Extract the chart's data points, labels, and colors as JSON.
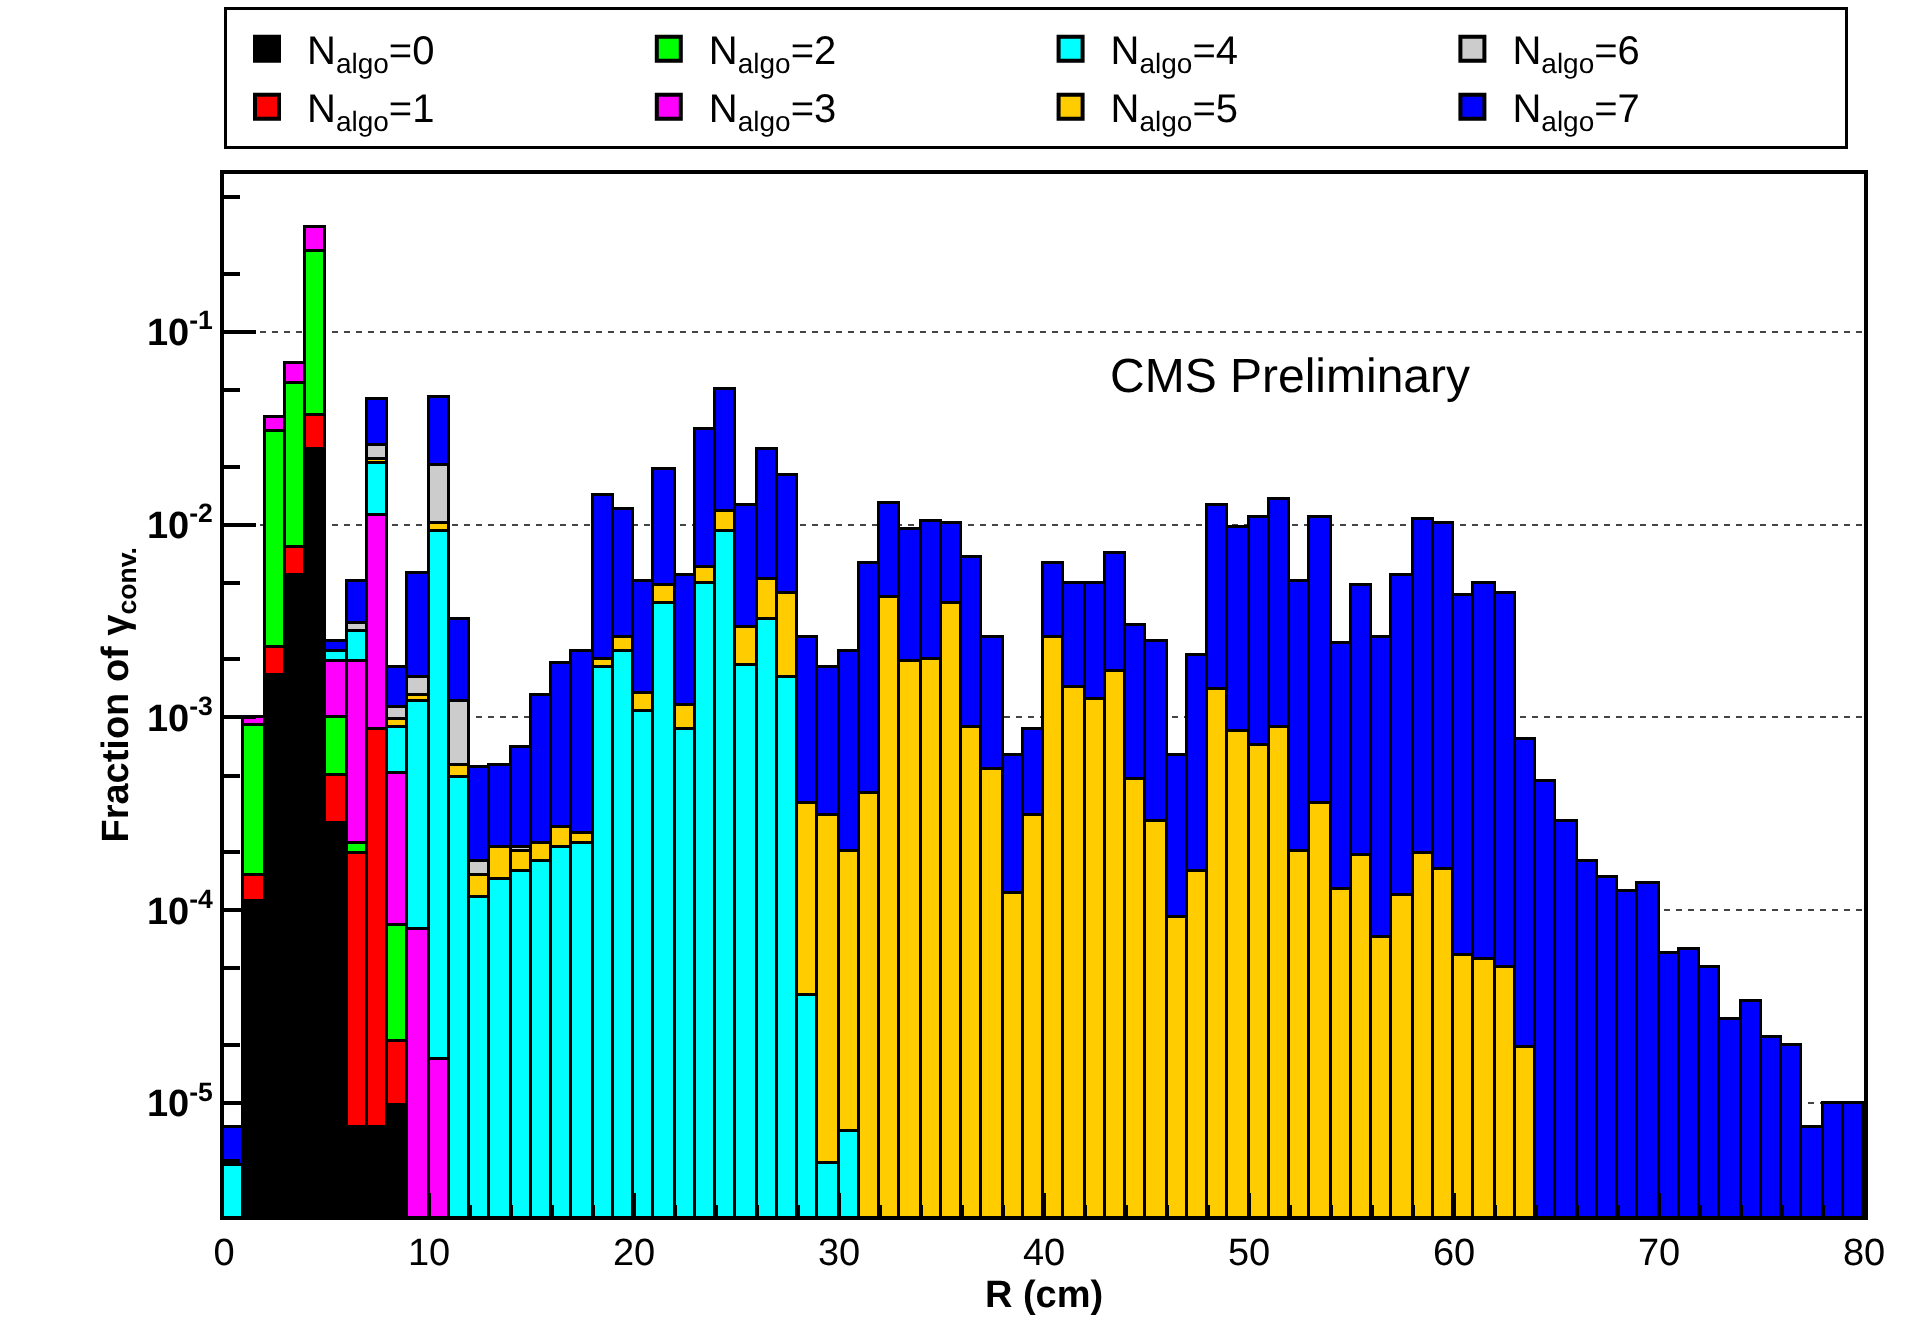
{
  "chart_data": {
    "type": "bar",
    "xlabel": "R (cm)",
    "ylabel": "Fraction of γ$_{conv.}$",
    "annotations": [
      "CMS Preliminary"
    ],
    "x": [
      0.5,
      1.5,
      2.5,
      3.5,
      4.5,
      5.5,
      6.5,
      7.5,
      8.5,
      9.5,
      10.5,
      11.5,
      12.5,
      13.5,
      14.5,
      15.5,
      16.5,
      17.5,
      18.5,
      19.5,
      20.5,
      21.5,
      22.5,
      23.5,
      24.5,
      25.5,
      26.5,
      27.5,
      28.5,
      29.5,
      30.5,
      31.5,
      32.5,
      33.5,
      34.5,
      35.5,
      36.5,
      37.5,
      38.5,
      39.5,
      40.5,
      41.5,
      42.5,
      43.5,
      44.5,
      45.5,
      46.5,
      47.5,
      48.5,
      49.5,
      50.5,
      51.5,
      52.5,
      53.5,
      54.5,
      55.5,
      56.5,
      57.5,
      58.5,
      59.5,
      60.5,
      61.5,
      62.5,
      63.5,
      64.5,
      65.5,
      66.5,
      67.5,
      68.5,
      69.5,
      70.5,
      71.5,
      72.5,
      73.5,
      74.5,
      75.5,
      76.5,
      77.5,
      78.5,
      79.5
    ],
    "stacked": true,
    "series": [
      {
        "name": "N$_{algo}$=0",
        "color": "#000000",
        "values": [
          null,
          0.00011,
          0.00166,
          0.0055,
          0.0245,
          0.00028,
          7.4e-06,
          7.4e-06,
          9.8e-06,
          null,
          null,
          null,
          null,
          null,
          null,
          null,
          null,
          null,
          null,
          null,
          null,
          null,
          null,
          null,
          null,
          null,
          null,
          null,
          null,
          null,
          null,
          null,
          null,
          null,
          null,
          null,
          null,
          null,
          null,
          null,
          null,
          null,
          null,
          null,
          null,
          null,
          null,
          null,
          null,
          null,
          null,
          null,
          null,
          null,
          null,
          null,
          null,
          null,
          null,
          null,
          null,
          null,
          null,
          null,
          null,
          null,
          null,
          null,
          null,
          null,
          null,
          null,
          null,
          null,
          null,
          null,
          null,
          null,
          null,
          null
        ]
      },
      {
        "name": "N$_{algo}$=1",
        "color": "#ff0000",
        "values": [
          null,
          4e-05,
          0.00064,
          0.0021,
          0.0125,
          0.00022,
          0.000188,
          0.000863,
          1.1e-05,
          null,
          null,
          null,
          null,
          null,
          null,
          null,
          null,
          null,
          null,
          null,
          null,
          null,
          null,
          null,
          null,
          null,
          null,
          null,
          null,
          null,
          null,
          null,
          null,
          null,
          null,
          null,
          null,
          null,
          null,
          null,
          null,
          null,
          null,
          null,
          null,
          null,
          null,
          null,
          null,
          null,
          null,
          null,
          null,
          null,
          null,
          null,
          null,
          null,
          null,
          null,
          null,
          null,
          null,
          null,
          null,
          null,
          null,
          null,
          null,
          null,
          null,
          null,
          null,
          null,
          null,
          null,
          null,
          null,
          null,
          null
        ]
      },
      {
        "name": "N$_{algo}$=2",
        "color": "#00ff00",
        "values": [
          null,
          0.00076,
          0.0277,
          0.0464,
          0.223,
          0.0005,
          2.5e-05,
          null,
          6.2e-05,
          null,
          null,
          null,
          null,
          null,
          null,
          null,
          null,
          null,
          null,
          null,
          null,
          null,
          null,
          null,
          null,
          null,
          null,
          null,
          null,
          null,
          null,
          null,
          null,
          null,
          null,
          null,
          null,
          null,
          null,
          null,
          null,
          null,
          null,
          null,
          null,
          null,
          null,
          null,
          null,
          null,
          null,
          null,
          null,
          null,
          null,
          null,
          null,
          null,
          null,
          null,
          null,
          null,
          null,
          null,
          null,
          null,
          null,
          null,
          null,
          null,
          null,
          null,
          null,
          null,
          null,
          null,
          null,
          null,
          null,
          null
        ]
      },
      {
        "name": "N$_{algo}$=3",
        "color": "#ff00ff",
        "values": [
          null,
          9e-05,
          0.006,
          0.015,
          0.09,
          0.00095,
          0.00173,
          0.0103,
          0.000427,
          7.9e-05,
          1.7e-05,
          null,
          null,
          null,
          null,
          null,
          null,
          null,
          null,
          null,
          null,
          null,
          null,
          null,
          null,
          null,
          null,
          null,
          null,
          null,
          null,
          null,
          null,
          null,
          null,
          null,
          null,
          null,
          null,
          null,
          null,
          null,
          null,
          null,
          null,
          null,
          null,
          null,
          null,
          null,
          null,
          null,
          null,
          null,
          null,
          null,
          null,
          null,
          null,
          null,
          null,
          null,
          null,
          null,
          null,
          null,
          null,
          null,
          null,
          null,
          null,
          null,
          null,
          null,
          null,
          null,
          null,
          null,
          null,
          null
        ]
      },
      {
        "name": "N$_{algo}$=4",
        "color": "#00ffff",
        "values": [
          4.8e-06,
          null,
          null,
          null,
          null,
          0.00025,
          0.00085,
          0.0093,
          0.00038,
          0.00112,
          0.00908,
          0.00049,
          0.000115,
          0.000145,
          0.00016,
          0.00018,
          0.00021,
          0.00022,
          0.0018,
          0.0022,
          0.00107,
          0.0039,
          0.00087,
          0.0049,
          0.0093,
          0.00186,
          0.0032,
          0.0016,
          3.6e-05,
          4.9e-06,
          7.2e-06,
          null,
          null,
          null,
          null,
          null,
          null,
          null,
          null,
          null,
          null,
          null,
          null,
          null,
          null,
          null,
          null,
          null,
          null,
          null,
          null,
          null,
          null,
          null,
          null,
          null,
          null,
          null,
          null,
          null,
          null,
          null,
          null,
          null,
          null,
          null,
          null,
          null,
          null,
          null,
          null,
          null,
          null,
          null,
          null,
          null,
          null,
          null,
          null,
          null
        ]
      },
      {
        "name": "N$_{algo}$=5",
        "color": "#ffcc00",
        "values": [
          null,
          null,
          null,
          null,
          null,
          null,
          null,
          0.0015,
          8e-05,
          0.0001,
          0.0009,
          7e-05,
          3.5e-05,
          6.5e-05,
          4e-05,
          4e-05,
          6e-05,
          3e-05,
          0.0002,
          0.0004,
          0.00026,
          0.0009,
          0.00028,
          0.0011,
          0.0024,
          0.00109,
          0.002,
          0.0028,
          0.000324,
          0.000305,
          0.000193,
          0.0004,
          0.0042,
          0.00196,
          0.002,
          0.0039,
          0.00089,
          0.00054,
          0.000123,
          0.00031,
          0.0026,
          0.00144,
          0.00123,
          0.00174,
          0.00048,
          0.00029,
          9.1e-05,
          0.000158,
          0.00138,
          0.00085,
          0.00071,
          0.00089,
          0.0002,
          0.00036,
          0.000129,
          0.00019,
          7.2e-05,
          0.00012,
          0.000195,
          0.000162,
          5.8e-05,
          5.5e-05,
          5.1e-05,
          1.95e-05,
          null,
          null,
          null,
          null,
          null,
          null,
          null,
          null,
          null,
          null,
          null,
          null,
          null,
          null,
          null,
          null
        ]
      },
      {
        "name": "N$_{algo}$=6",
        "color": "#cccccc",
        "values": [
          null,
          null,
          null,
          null,
          null,
          null,
          0.0003,
          0.0036,
          0.00015,
          0.0003,
          0.01,
          0.00064,
          3e-05,
          null,
          1e-05,
          null,
          null,
          null,
          null,
          null,
          null,
          null,
          null,
          null,
          null,
          null,
          null,
          null,
          null,
          null,
          null,
          null,
          null,
          null,
          null,
          null,
          null,
          null,
          null,
          null,
          null,
          null,
          null,
          null,
          null,
          null,
          null,
          null,
          null,
          null,
          null,
          null,
          null,
          null,
          null,
          null,
          null,
          null,
          null,
          null,
          null,
          null,
          null,
          null,
          null,
          null,
          null,
          null,
          null,
          null,
          null,
          null,
          null,
          null,
          null,
          null,
          null,
          null,
          null,
          null
        ]
      },
      {
        "name": "N$_{algo}$=7",
        "color": "#0000ff",
        "values": [
          2.6e-06,
          null,
          null,
          null,
          null,
          0.0003,
          0.0019,
          0.0187,
          0.00068,
          0.004,
          0.026,
          0.002,
          0.00037,
          0.00035,
          0.00048,
          0.00108,
          0.00163,
          0.00195,
          0.0122,
          0.0094,
          0.00377,
          0.0147,
          0.00435,
          0.025,
          0.0383,
          0.00965,
          0.0193,
          0.0136,
          0.00224,
          0.00149,
          0.002,
          0.0059,
          0.0086,
          0.00754,
          0.0083,
          0.0061,
          0.00591,
          0.00206,
          0.000517,
          0.00056,
          0.0036,
          0.00346,
          0.00367,
          0.00526,
          0.00252,
          0.00221,
          0.000549,
          0.00194,
          0.0112,
          0.00875,
          0.0102,
          0.0125,
          0.0048,
          0.0105,
          0.00227,
          0.00461,
          0.00253,
          0.00528,
          0.0103,
          0.00984,
          0.00424,
          0.00485,
          0.00435,
          0.00074,
          0.00047,
          0.00029,
          0.00018,
          0.000148,
          0.000126,
          0.000138,
          5.9e-05,
          6.2e-05,
          5e-05,
          2.7e-05,
          3.4e-05,
          2.2e-05,
          2e-05,
          7.4e-06,
          1e-05,
          1e-05
        ]
      }
    ],
    "xlim": [
      0,
      80
    ],
    "xticks": [
      0,
      10,
      20,
      30,
      40,
      50,
      60,
      70,
      80
    ],
    "ylim": [
      2.6e-06,
      0.66
    ],
    "log": true,
    "yticks": [
      {
        "value": 1e-05,
        "label": "10$^{-5}$"
      },
      {
        "value": 0.0001,
        "label": "10$^{-4}$"
      },
      {
        "value": 0.001,
        "label": "10$^{-3}$"
      },
      {
        "value": 0.01,
        "label": "10$^{-2}$"
      },
      {
        "value": 0.1,
        "label": "10$^{-1}$"
      }
    ],
    "grid": "y",
    "legend": "top"
  }
}
